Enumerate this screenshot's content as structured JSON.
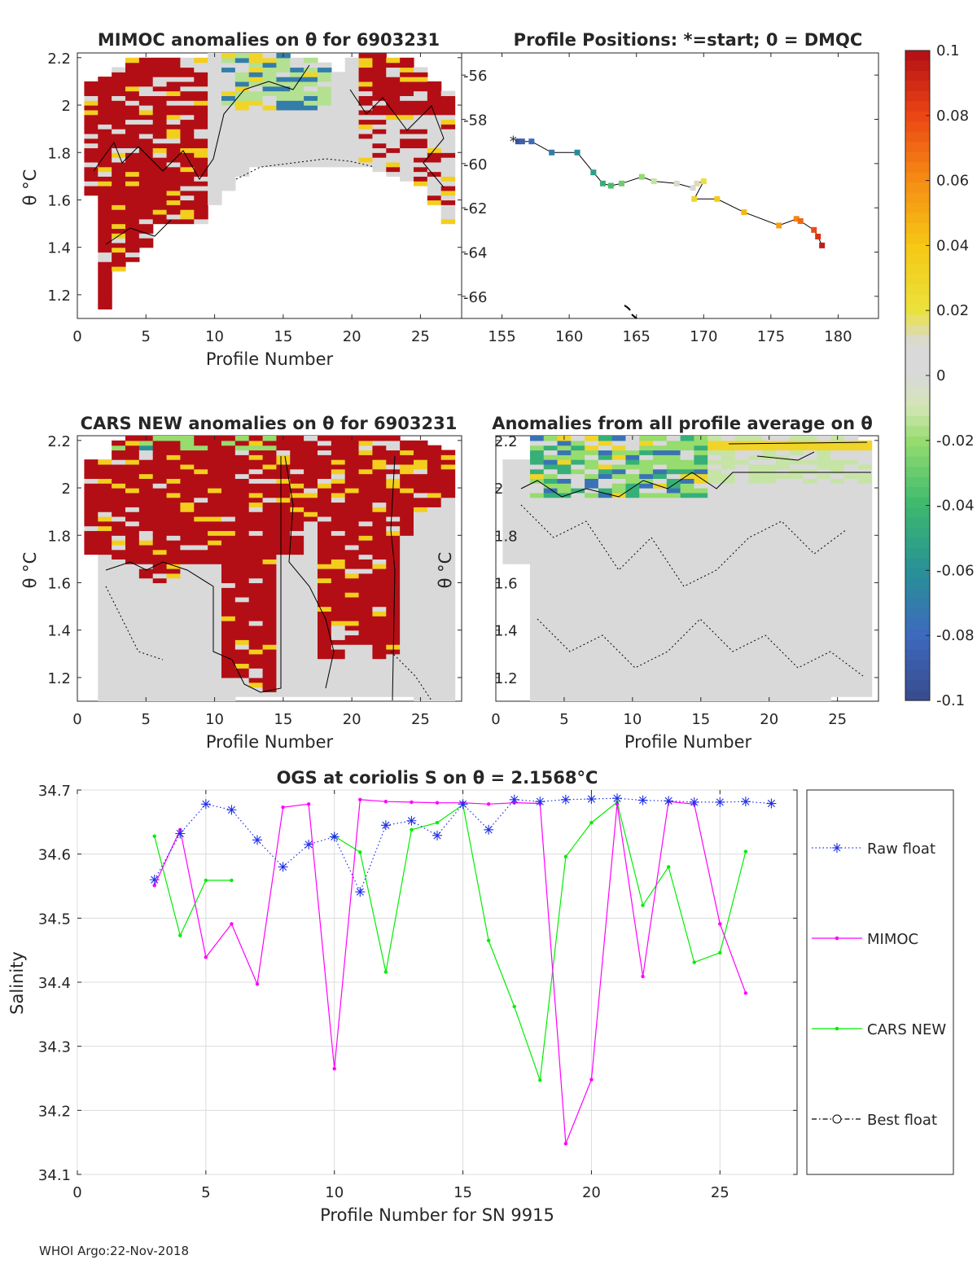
{
  "footer": "WHOI Argo:22-Nov-2018",
  "colors": {
    "anom_pos": "#b30e15",
    "anom_neutral": "#d9d9d9",
    "raw_float": "#1f2ee6",
    "mimoc": "#ff00ff",
    "cars": "#00ee00",
    "best": "#000000"
  },
  "colorbar": {
    "ticks": [
      "0.1",
      "0.08",
      "0.06",
      "0.04",
      "0.02",
      "0",
      "-0.02",
      "-0.04",
      "-0.06",
      "-0.08",
      "-0.1"
    ],
    "values": [
      0.1,
      0.08,
      0.06,
      0.04,
      0.02,
      0,
      -0.02,
      -0.04,
      -0.06,
      -0.08,
      -0.1
    ]
  },
  "chart_data": [
    {
      "id": "mimoc-anom",
      "type": "heatmap",
      "title": "MIMOC anomalies on θ  for 6903231",
      "xlabel": "Profile Number",
      "ylabel": "θ °C",
      "xlim": [
        0,
        28
      ],
      "ylim": [
        1.1,
        2.22
      ],
      "xticks": [
        "0",
        "5",
        "10",
        "15",
        "20",
        "25"
      ],
      "yticks": [
        "1.2",
        "1.4",
        "1.6",
        "1.8",
        "2",
        "2.2"
      ]
    },
    {
      "id": "positions",
      "type": "scatter",
      "title": "Profile Positions: *=start; 0 = DMQC",
      "xlim": [
        152,
        183
      ],
      "ylim": [
        -67,
        -55
      ],
      "xticks": [
        "155",
        "160",
        "165",
        "170",
        "175",
        "180"
      ],
      "yticks": [
        "-56",
        "-58",
        "-60",
        "-62",
        "-64",
        "-66"
      ],
      "lon": [
        156.2,
        156.5,
        157.2,
        158.7,
        160.6,
        161.8,
        162.5,
        163.1,
        163.9,
        165.4,
        166.3,
        168.0,
        169.2,
        169.5,
        170.0,
        169.3,
        171.0,
        173.0,
        175.6,
        176.9,
        177.2,
        178.2,
        178.5,
        178.8
      ],
      "lat": [
        -59.0,
        -59.0,
        -59.0,
        -59.5,
        -59.5,
        -60.4,
        -60.9,
        -61.0,
        -60.9,
        -60.6,
        -60.8,
        -60.9,
        -61.1,
        -60.9,
        -60.8,
        -61.6,
        -61.6,
        -62.2,
        -62.8,
        -62.5,
        -62.6,
        -63.0,
        -63.3,
        -63.7
      ]
    },
    {
      "id": "cars-anom",
      "type": "heatmap",
      "title": "CARS NEW anomalies on θ for 6903231",
      "xlabel": "Profile Number",
      "ylabel": "θ °C",
      "xlim": [
        0,
        28
      ],
      "ylim": [
        1.1,
        2.22
      ],
      "xticks": [
        "0",
        "5",
        "10",
        "15",
        "20",
        "25"
      ],
      "yticks": [
        "1.2",
        "1.4",
        "1.6",
        "1.8",
        "2",
        "2.2"
      ]
    },
    {
      "id": "avg-anom",
      "type": "heatmap",
      "title": "Anomalies from all profile average on θ",
      "xlabel": "Profile Number",
      "ylabel": "θ °C",
      "xlim": [
        0,
        28
      ],
      "ylim": [
        1.1,
        2.22
      ],
      "xticks": [
        "0",
        "5",
        "10",
        "15",
        "20",
        "25"
      ],
      "yticks": [
        "1.2",
        "1.4",
        "1.6",
        "1.8",
        "2",
        "2.2"
      ]
    },
    {
      "id": "ogs",
      "type": "line",
      "title": "OGS at coriolis S on θ = 2.1568°C",
      "xlabel": "Profile Number for SN 9915",
      "ylabel": "Salinity",
      "xlim": [
        0,
        28
      ],
      "ylim": [
        34.1,
        34.7
      ],
      "xticks": [
        "0",
        "5",
        "10",
        "15",
        "20",
        "25"
      ],
      "yticks": [
        "34.1",
        "34.2",
        "34.3",
        "34.4",
        "34.5",
        "34.6",
        "34.7"
      ],
      "legend": [
        "Raw float",
        "MIMOC",
        "CARS NEW",
        "Best float"
      ],
      "series": [
        {
          "name": "Raw float",
          "x": [
            3,
            4,
            5,
            6,
            7,
            8,
            9,
            10,
            11,
            12,
            13,
            14,
            15,
            16,
            17,
            18,
            19,
            20,
            21,
            22,
            23,
            24,
            25,
            26,
            27
          ],
          "y": [
            34.56,
            34.632,
            34.678,
            34.669,
            34.622,
            34.58,
            34.615,
            34.627,
            34.541,
            34.645,
            34.652,
            34.629,
            34.678,
            34.638,
            34.685,
            34.682,
            34.685,
            34.686,
            34.687,
            34.684,
            34.683,
            34.681,
            34.681,
            34.682,
            34.679
          ]
        },
        {
          "name": "MIMOC",
          "x": [
            3,
            4,
            5,
            6,
            7,
            8,
            9,
            10,
            11,
            12,
            13,
            14,
            15,
            16,
            17,
            18,
            19,
            20,
            21,
            22,
            23,
            24,
            25,
            26
          ],
          "y": [
            34.551,
            34.638,
            34.439,
            34.491,
            34.397,
            34.673,
            34.678,
            34.265,
            34.685,
            34.682,
            34.681,
            34.68,
            34.68,
            34.678,
            34.68,
            34.679,
            34.148,
            34.248,
            34.678,
            34.409,
            34.682,
            34.678,
            34.491,
            34.383
          ]
        },
        {
          "name": "CARS NEW",
          "segments": [
            {
              "x": [
                3,
                4,
                5,
                6
              ],
              "y": [
                34.628,
                34.473,
                34.559,
                34.559
              ]
            },
            {
              "x": [
                10,
                11,
                12,
                13,
                14,
                15,
                16,
                17,
                18,
                19,
                20,
                21,
                22,
                23,
                24,
                25,
                26
              ],
              "y": [
                34.628,
                34.603,
                34.416,
                34.638,
                34.649,
                34.677,
                34.465,
                34.362,
                34.247,
                34.596,
                34.649,
                34.681,
                34.52,
                34.58,
                34.431,
                34.446,
                34.604
              ]
            }
          ]
        },
        {
          "name": "Best float",
          "x": [],
          "y": []
        }
      ]
    }
  ]
}
